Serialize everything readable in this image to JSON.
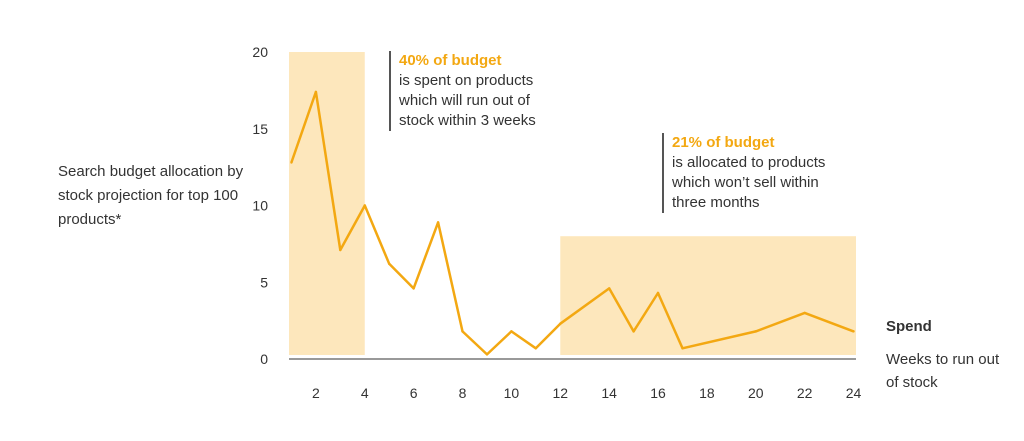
{
  "chart_data": {
    "type": "line",
    "ylabel": "Search budget allocation by stock projection for top 100 products*",
    "xlabel": "Weeks to run out of stock",
    "series_label": "Spend",
    "x": [
      1,
      2,
      3,
      4,
      5,
      6,
      7,
      8,
      9,
      10,
      11,
      12,
      14,
      15,
      16,
      17,
      20,
      22,
      24
    ],
    "y": [
      12.8,
      17.4,
      7.1,
      10.0,
      6.2,
      4.6,
      8.9,
      1.8,
      0.3,
      1.8,
      0.7,
      2.3,
      4.6,
      1.8,
      4.3,
      0.7,
      1.8,
      3.0,
      1.8
    ],
    "xticks": [
      "2",
      "4",
      "6",
      "8",
      "10",
      "12",
      "14",
      "16",
      "18",
      "20",
      "22",
      "24"
    ],
    "yticks": [
      "0",
      "5",
      "10",
      "15",
      "20"
    ],
    "xlim": [
      0.9,
      24.1
    ],
    "ylim": [
      0,
      20
    ],
    "highlight_regions": [
      {
        "x_start": 0.9,
        "x_end": 4,
        "y_top": 20
      },
      {
        "x_start": 12,
        "x_end": 24.1,
        "y_top": 8
      }
    ],
    "annotations": [
      {
        "highlight": "40% of budget",
        "text": "is spent on products\nwhich will run out of\nstock within 3 weeks"
      },
      {
        "highlight": "21% of budget",
        "text": "is allocated to products\nwhich won’t sell within\nthree months"
      }
    ],
    "colors": {
      "line": "#F3A812",
      "highlight_fill": "#FDE7BC",
      "axis": "#333333",
      "annotation_highlight": "#F3A812"
    }
  }
}
